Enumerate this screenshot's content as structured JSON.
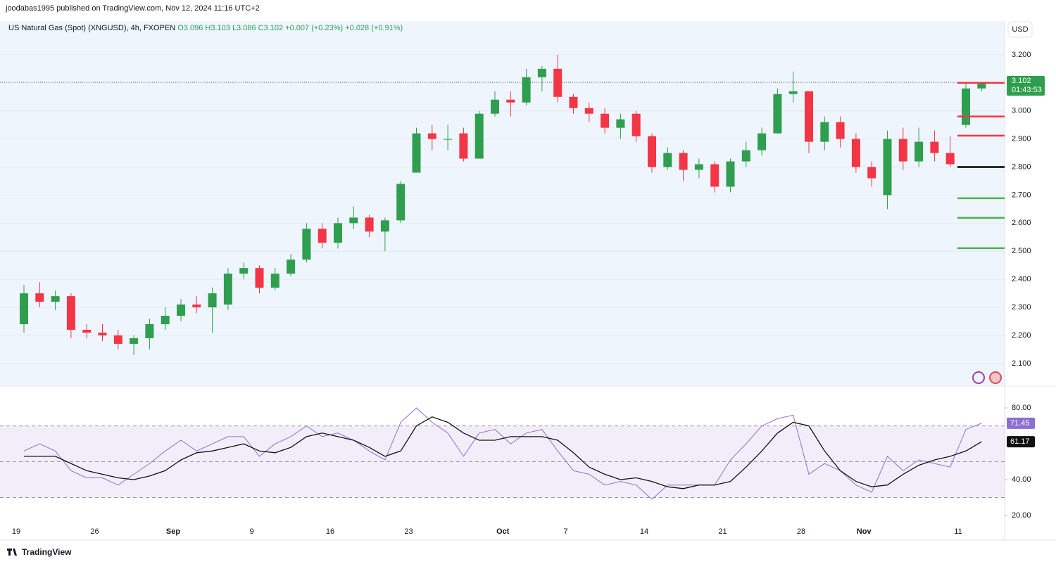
{
  "header": {
    "published": "joodabas1995 published on TradingView.com, Nov 12, 2024 11:16 UTC+2",
    "symbol": "US Natural Gas (Spot) (XNGUSD), 4h, FXOPEN",
    "ohlc": [
      "O3.096",
      "H3.103",
      "L3.086",
      "C3.102"
    ],
    "changes": [
      "+0.007 (+0.23%)",
      "+0.028 (+0.91%)"
    ],
    "currency": "USD",
    "countdown": "01:43:53"
  },
  "footer": {
    "brand": "TradingView"
  },
  "chart_data": [
    {
      "type": "candlestick",
      "up_color": "#2f9e4f",
      "down_color": "#f23645",
      "grid": true,
      "categories": [
        "19",
        null,
        null,
        null,
        null,
        "26",
        null,
        null,
        null,
        null,
        "Sep",
        null,
        null,
        null,
        null,
        "9",
        null,
        null,
        null,
        null,
        "16",
        null,
        null,
        null,
        null,
        "23",
        null,
        null,
        null,
        null,
        null,
        "Oct",
        null,
        null,
        null,
        "7",
        null,
        null,
        null,
        null,
        "14",
        null,
        null,
        null,
        null,
        "21",
        null,
        null,
        null,
        null,
        "28",
        null,
        null,
        null,
        "Nov",
        null,
        null,
        null,
        null,
        null,
        "11",
        null
      ],
      "open": [
        2.24,
        2.35,
        2.32,
        2.34,
        2.22,
        2.21,
        2.2,
        2.17,
        2.19,
        2.24,
        2.27,
        2.31,
        2.3,
        2.31,
        2.42,
        2.44,
        2.37,
        2.42,
        2.47,
        2.58,
        2.53,
        2.6,
        2.62,
        2.57,
        2.61,
        2.78,
        2.92,
        2.9,
        2.92,
        2.83,
        2.99,
        3.04,
        3.03,
        3.12,
        3.15,
        3.05,
        3.01,
        2.99,
        2.94,
        2.99,
        2.91,
        2.8,
        2.85,
        2.79,
        2.81,
        2.73,
        2.82,
        2.86,
        2.92,
        3.06,
        3.07,
        2.89,
        2.96,
        2.9,
        2.8,
        2.7,
        2.9,
        2.82,
        2.89,
        2.85,
        2.95,
        3.08
      ],
      "high": [
        2.38,
        2.39,
        2.36,
        2.35,
        2.24,
        2.24,
        2.22,
        2.2,
        2.26,
        2.3,
        2.33,
        2.34,
        2.37,
        2.44,
        2.46,
        2.45,
        2.44,
        2.49,
        2.6,
        2.6,
        2.62,
        2.66,
        2.63,
        2.62,
        2.75,
        2.94,
        2.95,
        2.95,
        2.94,
        3.0,
        3.07,
        3.07,
        3.15,
        3.16,
        3.2,
        3.06,
        3.03,
        3.01,
        2.99,
        3.0,
        2.92,
        2.87,
        2.86,
        2.83,
        2.82,
        2.83,
        2.89,
        2.94,
        3.08,
        3.14,
        3.07,
        2.98,
        2.98,
        2.92,
        2.82,
        2.93,
        2.94,
        2.94,
        2.93,
        2.91,
        3.1,
        3.103
      ],
      "low": [
        2.21,
        2.3,
        2.29,
        2.19,
        2.19,
        2.18,
        2.15,
        2.13,
        2.15,
        2.22,
        2.25,
        2.28,
        2.21,
        2.29,
        2.4,
        2.35,
        2.36,
        2.41,
        2.46,
        2.51,
        2.51,
        2.58,
        2.55,
        2.5,
        2.6,
        2.78,
        2.86,
        2.86,
        2.82,
        2.83,
        2.98,
        2.98,
        3.02,
        3.07,
        3.03,
        2.99,
        2.96,
        2.92,
        2.9,
        2.89,
        2.78,
        2.79,
        2.75,
        2.76,
        2.71,
        2.71,
        2.8,
        2.84,
        2.92,
        3.03,
        2.85,
        2.86,
        2.87,
        2.78,
        2.73,
        2.65,
        2.79,
        2.8,
        2.82,
        2.8,
        2.94,
        3.07
      ],
      "close": [
        2.35,
        2.32,
        2.34,
        2.22,
        2.21,
        2.2,
        2.17,
        2.19,
        2.24,
        2.27,
        2.31,
        2.3,
        2.35,
        2.42,
        2.44,
        2.37,
        2.42,
        2.47,
        2.58,
        2.53,
        2.6,
        2.62,
        2.57,
        2.61,
        2.74,
        2.92,
        2.9,
        2.9,
        2.83,
        2.99,
        3.04,
        3.03,
        3.12,
        3.15,
        3.05,
        3.01,
        2.99,
        2.94,
        2.97,
        2.91,
        2.8,
        2.85,
        2.79,
        2.81,
        2.73,
        2.82,
        2.86,
        2.92,
        3.06,
        3.07,
        2.89,
        2.96,
        2.9,
        2.8,
        2.76,
        2.9,
        2.82,
        2.89,
        2.85,
        2.81,
        3.08,
        3.102
      ],
      "ylim": [
        2.022,
        3.32
      ],
      "yticks": [
        {
          "value": 2.1,
          "label": "2.100"
        },
        {
          "value": 2.2,
          "label": "2.200"
        },
        {
          "value": 2.3,
          "label": "2.300"
        },
        {
          "value": 2.4,
          "label": "2.400"
        },
        {
          "value": 2.5,
          "label": "2.500"
        },
        {
          "value": 2.6,
          "label": "2.600"
        },
        {
          "value": 2.7,
          "label": "2.700"
        },
        {
          "value": 2.8,
          "label": "2.800"
        },
        {
          "value": 2.9,
          "label": "2.900"
        },
        {
          "value": 3.0,
          "label": "3.000"
        },
        {
          "value": 3.1,
          "label": "3.100"
        },
        {
          "value": 3.2,
          "label": "3.200"
        }
      ],
      "levels": [
        {
          "value": 3.1,
          "color": "#f23645"
        },
        {
          "value": 2.98,
          "color": "#f23645"
        },
        {
          "value": 2.912,
          "color": "#f23645"
        },
        {
          "value": 2.8,
          "color": "#000000"
        },
        {
          "value": 2.689,
          "color": "#4caf50"
        },
        {
          "value": 2.619,
          "color": "#4caf50"
        },
        {
          "value": 2.511,
          "color": "#4caf50"
        }
      ]
    },
    {
      "type": "line",
      "bands": [
        70,
        50,
        30
      ],
      "band_color": "#7e57c2",
      "series": [
        {
          "color": "#8c6fd1",
          "values": [
            56,
            60,
            56,
            45,
            41,
            41,
            37,
            43,
            49,
            56,
            62,
            56,
            60,
            64,
            64,
            53,
            60,
            64,
            70,
            64,
            66,
            62,
            56,
            51,
            72,
            80,
            72,
            66,
            53,
            66,
            68,
            60,
            66,
            68,
            56,
            45,
            43,
            37,
            39,
            37,
            29,
            37,
            37,
            37,
            37,
            51,
            60,
            70,
            74,
            76,
            43,
            49,
            45,
            37,
            33,
            53,
            45,
            51,
            49,
            47,
            68,
            71.45
          ]
        },
        {
          "color": "#111111",
          "values": [
            53,
            53,
            53,
            49,
            45,
            43,
            41,
            40,
            42,
            45,
            51,
            55,
            56,
            58,
            60,
            56,
            55,
            58,
            64,
            66,
            64,
            62,
            58,
            53,
            56,
            70,
            75,
            72,
            66,
            62,
            62,
            64,
            64,
            64,
            62,
            55,
            47,
            43,
            40,
            41,
            39,
            36,
            35,
            37,
            37,
            39,
            47,
            56,
            66,
            72,
            70,
            56,
            45,
            39,
            36,
            37,
            43,
            48,
            51,
            53,
            56,
            61.17
          ]
        }
      ],
      "ylim": [
        15.3,
        91.8
      ],
      "yticks": [
        {
          "value": 20,
          "label": "20.00"
        },
        {
          "value": 40,
          "label": "40.00"
        },
        {
          "value": 80,
          "label": "80.00"
        }
      ]
    }
  ]
}
